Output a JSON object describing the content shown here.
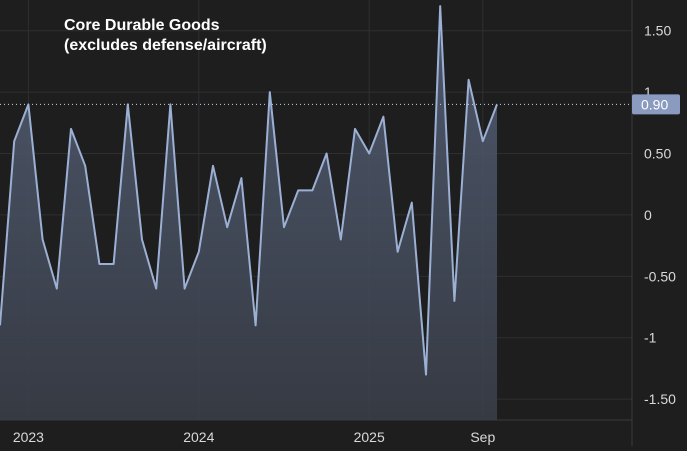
{
  "chart_data": {
    "type": "area",
    "title_line1": "Core Durable Goods",
    "title_line2": "(excludes defense/aircraft)",
    "x_tick_labels": [
      "2023",
      "2024",
      "2025",
      "Sep"
    ],
    "y_tick_labels": [
      "1.50",
      "1",
      "0.50",
      "0",
      "-0.50",
      "-1",
      "-1.50"
    ],
    "y_ticks": [
      1.5,
      1,
      0.5,
      0,
      -0.5,
      -1,
      -1.5
    ],
    "ylim": [
      -1.67,
      1.75
    ],
    "x_start": "2022-11",
    "x": [
      "2022-11",
      "2022-12",
      "2023-01",
      "2023-02",
      "2023-03",
      "2023-04",
      "2023-05",
      "2023-06",
      "2023-07",
      "2023-08",
      "2023-09",
      "2023-10",
      "2023-11",
      "2023-12",
      "2024-01",
      "2024-02",
      "2024-03",
      "2024-04",
      "2024-05",
      "2024-06",
      "2024-07",
      "2024-08",
      "2024-09",
      "2024-10",
      "2024-11",
      "2024-12",
      "2025-01",
      "2025-02",
      "2025-03",
      "2025-04",
      "2025-05",
      "2025-06",
      "2025-07",
      "2025-08",
      "2025-09",
      "2025-10"
    ],
    "series": [
      {
        "values": [
          -0.9,
          0.6,
          0.9,
          -0.2,
          -0.6,
          0.7,
          0.4,
          -0.4,
          -0.4,
          0.9,
          -0.2,
          -0.6,
          0.9,
          -0.6,
          -0.3,
          0.4,
          -0.1,
          0.3,
          -0.9,
          1.0,
          -0.1,
          0.2,
          0.2,
          0.5,
          -0.2,
          0.7,
          0.5,
          0.8,
          -0.3,
          0.1,
          -1.3,
          1.7,
          -0.7,
          1.1,
          0.6,
          0.9
        ]
      }
    ],
    "last_value_label": "0.90",
    "last_value": 0.9,
    "colors": {
      "background": "#1e1e1f",
      "line": "#9cb0d4",
      "area_top": "#56627a",
      "area_bottom": "#3a3f49",
      "grid": "#2e2f31",
      "badge": "#8a9bbf",
      "badge_text": "#ffffff",
      "axis_text": "#d9d9d9",
      "title": "#ffffff"
    }
  }
}
